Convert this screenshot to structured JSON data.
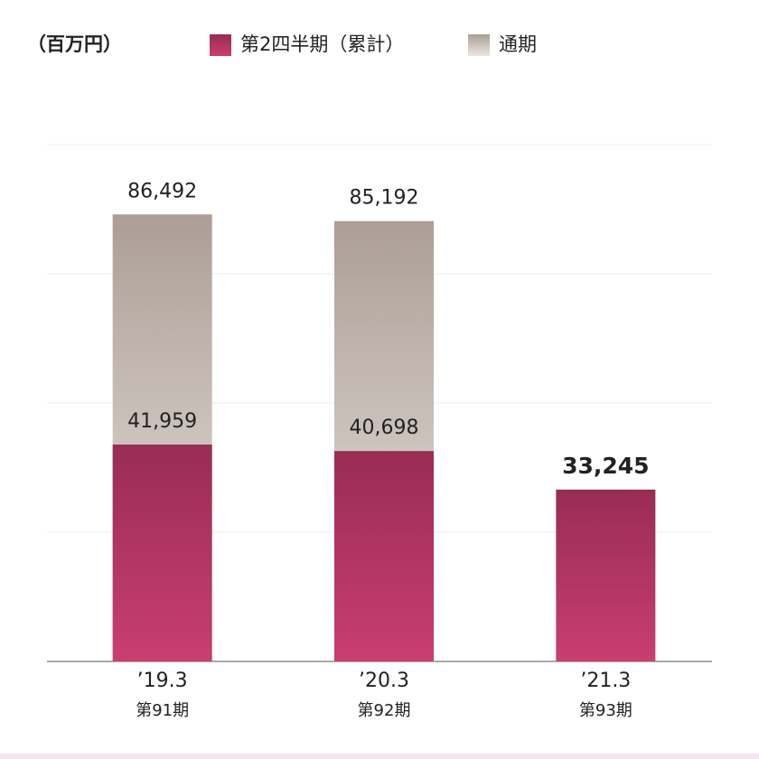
{
  "chart_data": {
    "type": "bar",
    "unit_label": "（百万円）",
    "categories": [
      "’19.3",
      "’20.3",
      "’21.3"
    ],
    "period_labels": [
      "第91期",
      "第92期",
      "第93期"
    ],
    "series": [
      {
        "name": "通期",
        "colors": [
          "#ac9e96",
          "#ece7e4"
        ],
        "values": [
          86492,
          85192,
          null
        ],
        "value_labels": [
          "86,492",
          "85,192",
          null
        ]
      },
      {
        "name": "第2四半期（累計）",
        "colors": [
          "#982d53",
          "#c93e6f"
        ],
        "values": [
          41959,
          40698,
          33245
        ],
        "value_labels": [
          "41,959",
          "40,698",
          "33,245"
        ]
      }
    ],
    "ylim": [
      0,
      100000
    ],
    "yticks": [
      0,
      25000,
      50000,
      75000,
      100000
    ],
    "grid": true
  }
}
